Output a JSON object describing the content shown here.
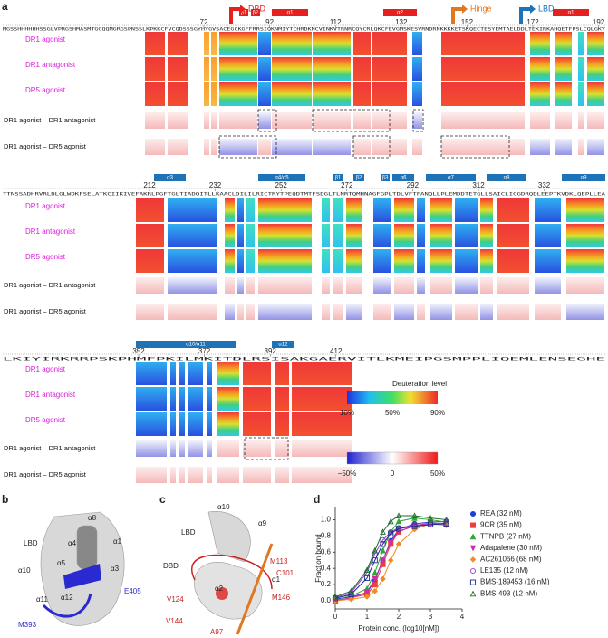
{
  "panel_a": {
    "letter": "a",
    "domains": [
      "DBD",
      "Hinge",
      "LBD"
    ],
    "row_labels": [
      "DR1 agonist",
      "DR1 antagonist",
      "DR5 agonist",
      "DR1 agonist – DR1 antagonist",
      "DR1 agonist – DR5 agonist"
    ],
    "blocks": [
      {
        "helices": [
          "β1",
          "β2",
          "α1",
          "α2",
          "α1"
        ],
        "numbers": [
          72,
          92,
          112,
          132,
          152,
          172,
          192
        ],
        "sequence": "MGSSHHHHHHSSGLVPRGSHMASMTGGQQMGRGSPNSSLKPKKCFVCQDSSSGYHYGVSACEGCKGFFRRSIQKNMIYTCHRDKNCVINKVTRNRCQYCRLQKCFEVGMSKESVRNDRNKKKKETSKQECTESYEMTAELDDLTEKIRKAHQETFPSLCQLGKY"
      },
      {
        "helices": [
          "α3",
          "α4/α5",
          "β1",
          "β2",
          "β3",
          "α6",
          "α7",
          "α8",
          "α9"
        ],
        "numbers": [
          212,
          232,
          252,
          272,
          292,
          312,
          332
        ],
        "sequence": "TTNSSADHRVRLDLGLWDKFSELATKCIIKIVEFAKRLPGFTGLTIADQITLLKAACLDILILRICTRYTPEQDTMTFSDGLTLNRTQMHNAGFGPLTDLVFTFANQLLPLEMDDTETGLLSAICLICGDRQDLEEPTKVDKLQEPLLEA"
      },
      {
        "helices": [
          "α10/α11",
          "α12"
        ],
        "numbers": [
          352,
          372,
          392,
          412
        ],
        "sequence": "LKIYIRKRRPSKPHMFPKILMKITDLRSISAKGAERVITLKMEIPGSMPPLIQEMLENSEGHE"
      }
    ],
    "colorbars": [
      {
        "title": "Deuteration level",
        "labels": [
          "10%",
          "50%",
          "90%"
        ]
      },
      {
        "labels": [
          "−50%",
          "0",
          "50%"
        ]
      }
    ]
  },
  "panel_b": {
    "letter": "b",
    "labels": [
      "α8",
      "LBD",
      "α4",
      "α1",
      "α10",
      "α5",
      "α3",
      "α12",
      "α11"
    ],
    "residues": [
      "E405",
      "M393"
    ]
  },
  "panel_c": {
    "letter": "c",
    "labels": [
      "α10",
      "α9",
      "LBD",
      "DBD",
      "α1",
      "α2"
    ],
    "residues": [
      "M113",
      "C101",
      "M146",
      "V124",
      "V144",
      "A97"
    ]
  },
  "chart_data": {
    "type": "line",
    "letter": "d",
    "x_label": "Protein conc. (log10[nM])",
    "y_label": "Fraction bound",
    "xlim": [
      0,
      4
    ],
    "xticks": [
      0,
      1,
      2,
      3,
      4
    ],
    "ylim": [
      -0.1,
      1.15
    ],
    "yticks": [
      {
        "value": 0,
        "label": "0.0"
      },
      {
        "value": 0.2,
        "label": "0.2"
      },
      {
        "value": 0.4,
        "label": "0.4"
      },
      {
        "value": 0.6,
        "label": "0.6"
      },
      {
        "value": 0.8,
        "label": "0.8"
      },
      {
        "value": 1,
        "label": "1.0"
      }
    ],
    "x": [
      0,
      0.5,
      1,
      1.25,
      1.5,
      1.75,
      2,
      2.5,
      3,
      3.5
    ],
    "series": [
      {
        "name": "REA (32 nM)",
        "color": "#1f3fd8",
        "marker": "circle",
        "values": [
          0.02,
          0.05,
          0.1,
          0.25,
          0.5,
          0.74,
          0.88,
          0.95,
          0.97,
          0.98
        ]
      },
      {
        "name": "9CR (35 nM)",
        "color": "#e8403a",
        "marker": "square",
        "values": [
          0,
          0.04,
          0.08,
          0.2,
          0.45,
          0.7,
          0.85,
          0.93,
          0.96,
          0.95
        ]
      },
      {
        "name": "TTNPB (27 nM)",
        "color": "#2ea836",
        "marker": "triangle",
        "values": [
          0.05,
          0.06,
          0.15,
          0.35,
          0.62,
          0.85,
          0.98,
          1.02,
          1,
          0.97
        ]
      },
      {
        "name": "Adapalene (30 nM)",
        "color": "#d12aa8",
        "marker": "triangle-down",
        "values": [
          0.01,
          0.03,
          0.11,
          0.27,
          0.5,
          0.72,
          0.86,
          0.92,
          0.94,
          0.95
        ]
      },
      {
        "name": "AC261066 (68 nM)",
        "color": "#f08a24",
        "marker": "diamond",
        "values": [
          0,
          0.02,
          0.05,
          0.12,
          0.27,
          0.5,
          0.7,
          0.88,
          0.95,
          0.93
        ]
      },
      {
        "name": "LE135 (12 nM)",
        "color": "#9b3fd6",
        "marker": "circle-open",
        "values": [
          0.04,
          0.1,
          0.35,
          0.58,
          0.75,
          0.85,
          0.9,
          0.93,
          0.95,
          0.96
        ]
      },
      {
        "name": "BMS-189453 (16 nM)",
        "color": "#1a2a8a",
        "marker": "square-open",
        "values": [
          0.03,
          0.08,
          0.28,
          0.5,
          0.7,
          0.83,
          0.89,
          0.92,
          0.94,
          0.95
        ]
      },
      {
        "name": "BMS-493 (12 nM)",
        "color": "#1d6b2a",
        "marker": "triangle-open",
        "values": [
          0.05,
          0.12,
          0.38,
          0.62,
          0.85,
          0.98,
          1.05,
          1.05,
          1.02,
          1
        ]
      }
    ]
  }
}
